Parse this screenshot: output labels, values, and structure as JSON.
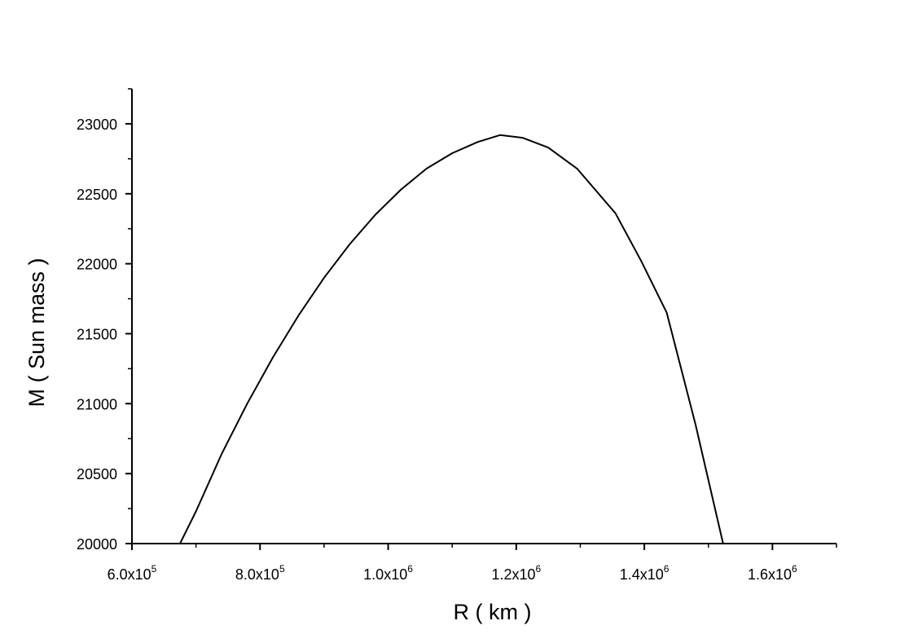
{
  "chart_data": {
    "type": "line",
    "xlabel": "R ( km )",
    "ylabel": "M ( Sun mass )",
    "xlim": [
      600000,
      1700000
    ],
    "ylim": [
      20000,
      23250
    ],
    "x_ticks": [
      {
        "value": 600000,
        "mantissa": "6.0x10",
        "exponent": "5"
      },
      {
        "value": 800000,
        "mantissa": "8.0x10",
        "exponent": "5"
      },
      {
        "value": 1000000,
        "mantissa": "1.0x10",
        "exponent": "6"
      },
      {
        "value": 1200000,
        "mantissa": "1.2x10",
        "exponent": "6"
      },
      {
        "value": 1400000,
        "mantissa": "1.4x10",
        "exponent": "6"
      },
      {
        "value": 1600000,
        "mantissa": "1.6x10",
        "exponent": "6"
      }
    ],
    "y_ticks": [
      {
        "value": 20000,
        "label": "20000"
      },
      {
        "value": 20500,
        "label": "20500"
      },
      {
        "value": 21000,
        "label": "21000"
      },
      {
        "value": 21500,
        "label": "21500"
      },
      {
        "value": 22000,
        "label": "22000"
      },
      {
        "value": 22500,
        "label": "22500"
      },
      {
        "value": 23000,
        "label": "23000"
      }
    ],
    "grid": false,
    "series": [
      {
        "x": [
          675000,
          700000,
          740000,
          780000,
          820000,
          860000,
          900000,
          940000,
          980000,
          1020000,
          1060000,
          1100000,
          1140000,
          1175000,
          1210000,
          1250000,
          1295000,
          1355000,
          1395000,
          1435000,
          1480000,
          1523000
        ],
        "y": [
          20000,
          20230,
          20640,
          21000,
          21330,
          21630,
          21900,
          22140,
          22350,
          22530,
          22680,
          22790,
          22870,
          22920,
          22900,
          22830,
          22680,
          22360,
          22020,
          21650,
          20850,
          20000
        ],
        "color": "#000000"
      }
    ]
  }
}
